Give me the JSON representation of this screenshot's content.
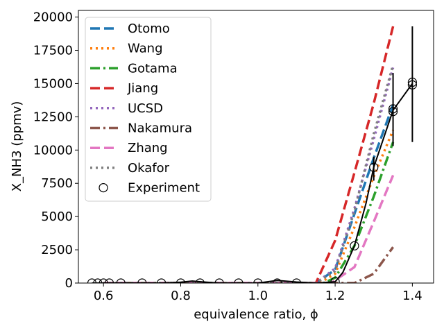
{
  "chart_data": {
    "type": "line",
    "xlabel": "equivalence ratio, ϕ",
    "ylabel": "X_NH3 (ppmv)",
    "xlim": [
      0.535,
      1.455
    ],
    "ylim": [
      0,
      20500
    ],
    "xticks": [
      0.6,
      0.8,
      1.0,
      1.2,
      1.4
    ],
    "xtick_labels": [
      "0.6",
      "0.8",
      "1.0",
      "1.2",
      "1.4"
    ],
    "yticks": [
      0,
      2500,
      5000,
      7500,
      10000,
      12500,
      15000,
      17500,
      20000
    ],
    "ytick_labels": [
      "0",
      "2500",
      "5000",
      "7500",
      "10000",
      "12500",
      "15000",
      "17500",
      "20000"
    ],
    "grid": false,
    "legend_position": "top-left",
    "series": [
      {
        "name": "Otomo",
        "color": "#1f77b4",
        "style": "dashed",
        "x": [
          0.6,
          1.0,
          1.15,
          1.2,
          1.25,
          1.3,
          1.35
        ],
        "y": [
          0,
          0,
          0,
          1000,
          5200,
          9400,
          13400
        ]
      },
      {
        "name": "Wang",
        "color": "#ff7f0e",
        "style": "dotted",
        "x": [
          0.6,
          1.0,
          1.16,
          1.2,
          1.25,
          1.3,
          1.35
        ],
        "y": [
          0,
          0,
          0,
          700,
          4200,
          8000,
          11500
        ]
      },
      {
        "name": "Gotama",
        "color": "#2ca02c",
        "style": "dashdot",
        "x": [
          0.6,
          1.0,
          1.17,
          1.2,
          1.25,
          1.3,
          1.35
        ],
        "y": [
          0,
          0,
          0,
          400,
          2800,
          6500,
          10600
        ]
      },
      {
        "name": "Jiang",
        "color": "#d62728",
        "style": "dashed",
        "x": [
          0.6,
          1.0,
          1.15,
          1.2,
          1.25,
          1.3,
          1.35
        ],
        "y": [
          0,
          0,
          0,
          3200,
          8300,
          13500,
          19300
        ]
      },
      {
        "name": "UCSD",
        "color": "#9467bd",
        "style": "dotted",
        "x": [
          0.6,
          1.0,
          1.15,
          1.2,
          1.25,
          1.3,
          1.35
        ],
        "y": [
          0,
          0,
          0,
          1100,
          5600,
          10800,
          16200
        ]
      },
      {
        "name": "Nakamura",
        "color": "#8c564b",
        "style": "dashdot",
        "x": [
          0.6,
          1.0,
          1.25,
          1.3,
          1.35
        ],
        "y": [
          0,
          0,
          0,
          700,
          2700
        ]
      },
      {
        "name": "Zhang",
        "color": "#e377c2",
        "style": "dashed",
        "x": [
          0.6,
          1.0,
          1.19,
          1.25,
          1.3,
          1.35
        ],
        "y": [
          0,
          0,
          0,
          1200,
          4600,
          8100
        ]
      },
      {
        "name": "Okafor",
        "color": "#7f7f7f",
        "style": "dotted",
        "x": [
          0.6,
          1.0,
          1.15,
          1.2,
          1.25,
          1.3,
          1.35
        ],
        "y": [
          0,
          0,
          0,
          900,
          5400,
          11200,
          16400
        ]
      }
    ],
    "experiment": {
      "name": "Experiment",
      "x": [
        0.57,
        0.585,
        0.6,
        0.615,
        0.645,
        0.7,
        0.75,
        0.8,
        0.85,
        0.9,
        0.95,
        1.0,
        1.05,
        1.1,
        1.2,
        1.25,
        1.3,
        1.35,
        1.35,
        1.4,
        1.4
      ],
      "y": [
        0,
        0,
        0,
        0,
        0,
        0,
        0,
        0,
        0,
        0,
        0,
        0,
        0,
        0,
        100,
        2800,
        8700,
        12900,
        13100,
        14900,
        15100
      ],
      "errorbars": [
        {
          "x": 1.3,
          "low": 7700,
          "high": 9500
        },
        {
          "x": 1.35,
          "low": 10300,
          "high": 15800
        },
        {
          "x": 1.4,
          "low": 10600,
          "high": 19300
        }
      ],
      "trend": {
        "x": [
          0.57,
          0.6,
          0.65,
          0.7,
          0.75,
          0.8,
          0.83,
          0.86,
          0.9,
          0.95,
          1.0,
          1.05,
          1.1,
          1.15,
          1.2,
          1.22,
          1.25,
          1.28,
          1.3,
          1.35,
          1.38,
          1.4
        ],
        "y": [
          0,
          0,
          0,
          0,
          0,
          60,
          150,
          80,
          0,
          0,
          0,
          200,
          80,
          0,
          100,
          800,
          2800,
          6000,
          8700,
          13000,
          14200,
          15000
        ]
      }
    }
  }
}
